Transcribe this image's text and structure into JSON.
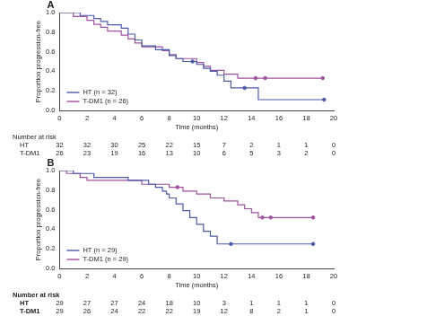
{
  "chart_data": [
    {
      "type": "line",
      "label": "A",
      "x_label": "Time (months)",
      "y_label": "Proportion progression-free",
      "xlim": [
        0,
        20
      ],
      "xticks": [
        0,
        2,
        4,
        6,
        8,
        10,
        12,
        14,
        16,
        18,
        20
      ],
      "ylim": [
        0,
        1
      ],
      "yticks": [
        {
          "value": 0,
          "label": "0.0"
        },
        {
          "value": 0.2,
          "label": "0.2"
        },
        {
          "value": 0.4,
          "label": "0.4"
        },
        {
          "value": 0.6,
          "label": "0.6"
        },
        {
          "value": 0.8,
          "label": "0.8"
        },
        {
          "value": 1,
          "label": "1.0"
        }
      ],
      "grid": false,
      "legend": "lower left",
      "line_style": "step",
      "series": [
        {
          "name": "HT (n = 32)",
          "color": "#4b5aa8",
          "x": [
            0,
            1.5,
            2.5,
            3,
            3.5,
            4.5,
            5,
            5.5,
            6,
            7,
            8,
            8.5,
            9,
            10,
            10.5,
            11,
            11.5,
            12,
            12.5,
            14.5,
            19.3
          ],
          "values": [
            1,
            0.97,
            0.94,
            0.91,
            0.875,
            0.84,
            0.78,
            0.72,
            0.66,
            0.62,
            0.56,
            0.53,
            0.5,
            0.47,
            0.43,
            0.4,
            0.36,
            0.3,
            0.23,
            0.11,
            0.11
          ],
          "censor_x": [
            9.7,
            13.5,
            19.3
          ],
          "censor_values": [
            0.5,
            0.23,
            0.11
          ]
        },
        {
          "name": "T-DM1 (n = 26)",
          "color": "#a0509e",
          "x": [
            0,
            1,
            2,
            2.5,
            3,
            3.5,
            4.5,
            5,
            5.5,
            6,
            7.5,
            8,
            8.5,
            10,
            10.5,
            11,
            12,
            13,
            19.2
          ],
          "values": [
            1,
            0.96,
            0.92,
            0.88,
            0.85,
            0.81,
            0.77,
            0.73,
            0.69,
            0.65,
            0.61,
            0.57,
            0.53,
            0.49,
            0.45,
            0.41,
            0.37,
            0.33,
            0.33
          ],
          "censor_x": [
            14.3,
            15,
            19.2
          ],
          "censor_values": [
            0.33,
            0.33,
            0.33
          ]
        }
      ],
      "risk_table": {
        "title": "Number at risk",
        "times": [
          0,
          2,
          4,
          6,
          8,
          10,
          12,
          14,
          16,
          18,
          20
        ],
        "rows": [
          {
            "name": "HT",
            "values": [
              32,
              32,
              30,
              25,
              22,
              15,
              7,
              2,
              1,
              1,
              0
            ]
          },
          {
            "name": "T-DM1",
            "values": [
              26,
              23,
              19,
              16,
              13,
              10,
              6,
              5,
              3,
              2,
              0
            ]
          }
        ]
      }
    },
    {
      "type": "line",
      "label": "B",
      "x_label": "Time (months)",
      "y_label": "Proportion progression-free",
      "xlim": [
        0,
        20
      ],
      "xticks": [
        0,
        2,
        4,
        6,
        8,
        10,
        12,
        14,
        16,
        18,
        20
      ],
      "ylim": [
        0,
        1
      ],
      "yticks": [
        {
          "value": 0,
          "label": "0.0"
        },
        {
          "value": 0.2,
          "label": "0.2"
        },
        {
          "value": 0.4,
          "label": "0.4"
        },
        {
          "value": 0.6,
          "label": "0.6"
        },
        {
          "value": 0.8,
          "label": "0.8"
        },
        {
          "value": 1,
          "label": "1.0"
        }
      ],
      "grid": false,
      "legend": "lower left",
      "line_style": "step",
      "series": [
        {
          "name": "HT (n = 29)",
          "color": "#4b5aa8",
          "x": [
            0,
            1,
            2.5,
            5,
            6.5,
            7,
            7.5,
            7.8,
            8,
            8.5,
            9,
            9.5,
            10,
            10.5,
            11,
            11.5,
            18.5
          ],
          "values": [
            1,
            0.97,
            0.93,
            0.9,
            0.86,
            0.83,
            0.79,
            0.76,
            0.72,
            0.66,
            0.59,
            0.52,
            0.45,
            0.38,
            0.33,
            0.25,
            0.25
          ],
          "censor_x": [
            12.5,
            18.5
          ],
          "censor_values": [
            0.25,
            0.25
          ]
        },
        {
          "name": "T-DM1 (n = 29)",
          "color": "#a0509e",
          "x": [
            0,
            0.5,
            1.5,
            2,
            6,
            8,
            9,
            10,
            11,
            12,
            13,
            13.5,
            14,
            14.5,
            18.5
          ],
          "values": [
            1,
            0.97,
            0.93,
            0.9,
            0.86,
            0.83,
            0.79,
            0.76,
            0.72,
            0.69,
            0.65,
            0.61,
            0.57,
            0.52,
            0.52
          ],
          "censor_x": [
            8.6,
            14.8,
            15.4,
            18.5
          ],
          "censor_values": [
            0.83,
            0.52,
            0.52,
            0.52
          ]
        }
      ],
      "risk_table": {
        "title": "Number at risk",
        "times": [
          0,
          2,
          4,
          6,
          8,
          10,
          12,
          14,
          16,
          18,
          20
        ],
        "rows": [
          {
            "name": "HT",
            "values": [
              29,
              27,
              27,
              24,
              18,
              10,
              3,
              1,
              1,
              1,
              0
            ]
          },
          {
            "name": "T-DM1",
            "values": [
              29,
              26,
              24,
              22,
              22,
              19,
              12,
              8,
              2,
              1,
              0
            ]
          }
        ]
      }
    }
  ]
}
